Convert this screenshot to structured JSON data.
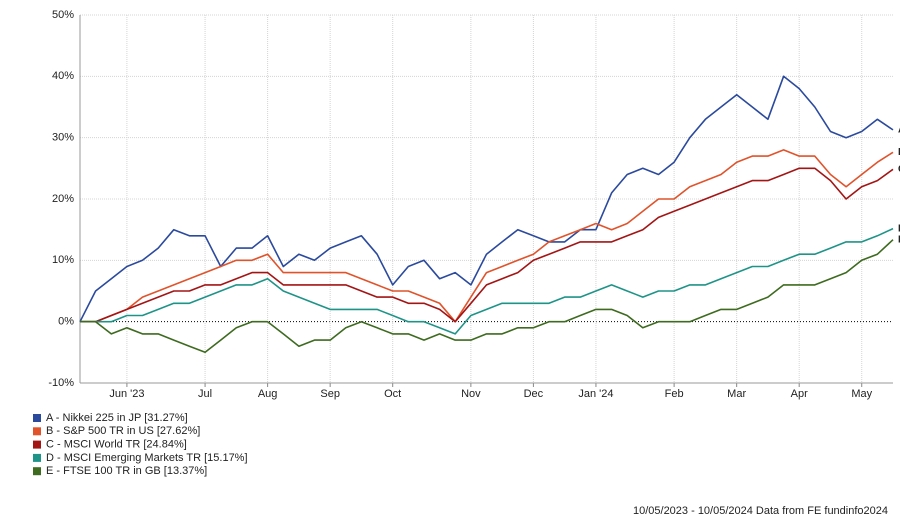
{
  "chart_data": {
    "type": "line",
    "categories": [
      null,
      null,
      null,
      "Jun '23",
      null,
      null,
      null,
      null,
      "Jul",
      null,
      null,
      null,
      "Aug",
      null,
      null,
      null,
      "Sep",
      null,
      null,
      null,
      "Oct",
      null,
      null,
      null,
      null,
      "Nov",
      null,
      null,
      null,
      "Dec",
      null,
      null,
      null,
      "Jan '24",
      null,
      null,
      null,
      null,
      "Feb",
      null,
      null,
      null,
      "Mar",
      null,
      null,
      null,
      "Apr",
      null,
      null,
      null,
      "May",
      null,
      null
    ],
    "series": [
      {
        "name": "A - Nikkei 225 in JP [31.27%]",
        "tag": "A",
        "color": "#2b4a9e",
        "values": [
          0,
          5,
          7,
          9,
          10,
          12,
          15,
          14,
          14,
          9,
          12,
          12,
          14,
          9,
          11,
          10,
          12,
          13,
          14,
          11,
          6,
          9,
          10,
          7,
          8,
          6,
          11,
          13,
          15,
          14,
          13,
          13,
          15,
          15,
          21,
          24,
          25,
          24,
          26,
          30,
          33,
          35,
          37,
          35,
          33,
          40,
          38,
          35,
          31,
          30,
          31,
          33,
          31.27
        ]
      },
      {
        "name": "B - S&P 500 TR in US [27.62%]",
        "tag": "B",
        "color": "#e0532b",
        "values": [
          0,
          0,
          1,
          2,
          4,
          5,
          6,
          7,
          8,
          9,
          10,
          10,
          11,
          8,
          8,
          8,
          8,
          8,
          7,
          6,
          5,
          5,
          4,
          3,
          0,
          4,
          8,
          9,
          10,
          11,
          13,
          14,
          15,
          16,
          15,
          16,
          18,
          20,
          20,
          22,
          23,
          24,
          26,
          27,
          27,
          28,
          27,
          27,
          24,
          22,
          24,
          26,
          27.62
        ]
      },
      {
        "name": "C - MSCI World TR [24.84%]",
        "tag": "C",
        "color": "#a31515",
        "values": [
          0,
          0,
          1,
          2,
          3,
          4,
          5,
          5,
          6,
          6,
          7,
          8,
          8,
          6,
          6,
          6,
          6,
          6,
          5,
          4,
          4,
          3,
          3,
          2,
          0,
          3,
          6,
          7,
          8,
          10,
          11,
          12,
          13,
          13,
          13,
          14,
          15,
          17,
          18,
          19,
          20,
          21,
          22,
          23,
          23,
          24,
          25,
          25,
          23,
          20,
          22,
          23,
          24.84
        ]
      },
      {
        "name": "D - MSCI Emerging Markets TR [15.17%]",
        "tag": "D",
        "color": "#1e9488",
        "values": [
          0,
          0,
          0,
          1,
          1,
          2,
          3,
          3,
          4,
          5,
          6,
          6,
          7,
          5,
          4,
          3,
          2,
          2,
          2,
          2,
          1,
          0,
          0,
          -1,
          -2,
          1,
          2,
          3,
          3,
          3,
          3,
          4,
          4,
          5,
          6,
          5,
          4,
          5,
          5,
          6,
          6,
          7,
          8,
          9,
          9,
          10,
          11,
          11,
          12,
          13,
          13,
          14,
          15.17
        ]
      },
      {
        "name": "E - FTSE 100 TR in GB [13.37%]",
        "tag": "E",
        "color": "#3e6b1f",
        "values": [
          0,
          0,
          -2,
          -1,
          -2,
          -2,
          -3,
          -4,
          -5,
          -3,
          -1,
          0,
          0,
          -2,
          -4,
          -3,
          -3,
          -1,
          0,
          -1,
          -2,
          -2,
          -3,
          -2,
          -3,
          -3,
          -2,
          -2,
          -1,
          -1,
          0,
          0,
          1,
          2,
          2,
          1,
          -1,
          0,
          0,
          0,
          1,
          2,
          2,
          3,
          4,
          6,
          6,
          6,
          7,
          8,
          10,
          11,
          13.37
        ]
      }
    ],
    "ylim": [
      -10,
      50
    ],
    "yticks": [
      {
        "value": -10,
        "label": "-10%"
      },
      {
        "value": 0,
        "label": "0%"
      },
      {
        "value": 10,
        "label": "10%"
      },
      {
        "value": 20,
        "label": "20%"
      },
      {
        "value": 30,
        "label": "30%"
      },
      {
        "value": 40,
        "label": "40%"
      },
      {
        "value": 50,
        "label": "50%"
      }
    ],
    "grid": true,
    "source": "10/05/2023 - 10/05/2024 Data from FE fundinfo2024"
  }
}
